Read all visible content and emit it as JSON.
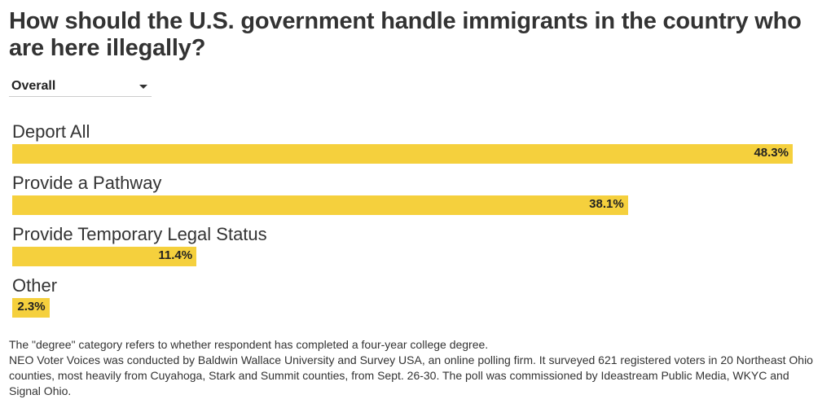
{
  "title": "How should the U.S. government handle immigrants in the country who are here illegally?",
  "filter": {
    "selected": "Overall"
  },
  "chart_data": {
    "type": "bar",
    "orientation": "horizontal",
    "categories": [
      "Deport All",
      "Provide a Pathway",
      "Provide Temporary Legal Status",
      "Other"
    ],
    "values": [
      48.3,
      38.1,
      11.4,
      2.3
    ],
    "value_labels": [
      "48.3%",
      "38.1%",
      "11.4%",
      "2.3%"
    ],
    "unit": "%",
    "bar_color": "#f5d03d",
    "title": "How should the U.S. government handle immigrants in the country who are here illegally?",
    "xlim": [
      0,
      50
    ]
  },
  "notes": {
    "line1": "The \"degree\" category refers to whether respondent has completed a four-year college degree.",
    "line2": "NEO Voter Voices was conducted by Baldwin Wallace University and Survey USA, an online polling firm. It surveyed 621 registered voters in 20 Northeast Ohio counties, most heavily from Cuyahoga, Stark and Summit counties, from Sept. 26-30. The poll was commissioned by Ideastream Public Media, WKYC and Signal Ohio."
  }
}
